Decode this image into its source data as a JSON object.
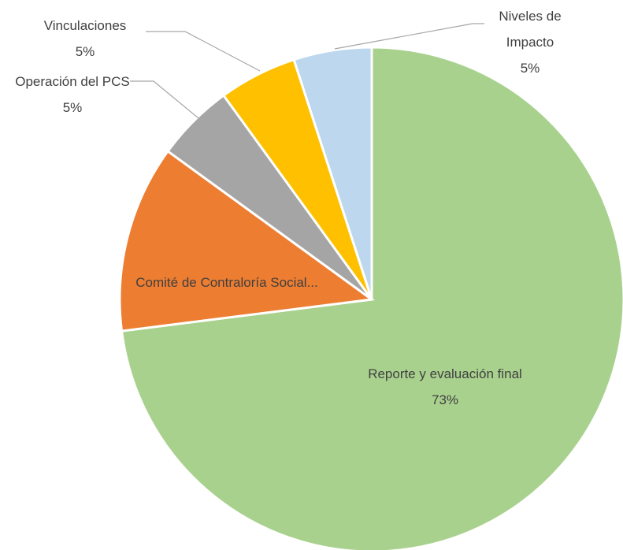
{
  "chart_data": {
    "type": "pie",
    "categories": [
      "Reporte y evaluación final",
      "Comité de Contraloría Social...",
      "Operación del PCS",
      "Vinculaciones",
      "Niveles de Impacto"
    ],
    "values": [
      73,
      12,
      5,
      5,
      5
    ],
    "value_labels": [
      "73%",
      null,
      "5%",
      "5%",
      "5%"
    ],
    "colors": [
      "#a9d18e",
      "#ed7d31",
      "#a5a5a5",
      "#ffc000",
      "#bdd7ee"
    ]
  }
}
